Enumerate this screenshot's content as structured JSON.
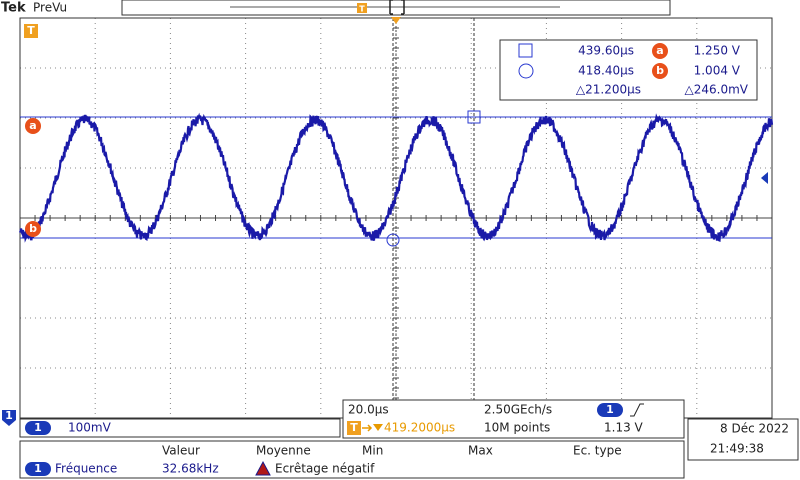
{
  "header": {
    "brand": "Tek",
    "mode": "PreVu"
  },
  "markers": {
    "trigger": "T",
    "cursor_a": "a",
    "cursor_b": "b",
    "channel": "1"
  },
  "cursors": {
    "rows": [
      {
        "time": "439.60µs",
        "volts": "1.250 V"
      },
      {
        "time": "418.40µs",
        "volts": "1.004 V"
      }
    ],
    "delta_time": "△21.200µs",
    "delta_volts": "△246.0mV"
  },
  "channel": {
    "scale": "100mV"
  },
  "timebase": {
    "scale": "20.0µs",
    "sample_rate": "2.50GEch/s",
    "trigger_position": "419.2000µs",
    "record_length": "10M points",
    "trigger_level": "1.13 V"
  },
  "datetime": {
    "date": "8 Déc 2022",
    "time": "21:49:38"
  },
  "measurements": {
    "headers": [
      "Valeur",
      "Moyenne",
      "Min",
      "Max",
      "Ec. type"
    ],
    "rows": [
      {
        "name": "Fréquence",
        "value": "32.68kHz",
        "warning": "Ecrêtage négatif"
      }
    ]
  }
}
